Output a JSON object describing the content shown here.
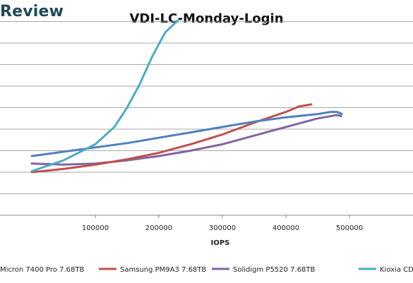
{
  "brand": "Review",
  "chart_data": {
    "type": "line",
    "title": "VDI-LC-Monday-Login",
    "xlabel": "IOPS",
    "ylabel": "",
    "xlim": [
      -50000,
      600000
    ],
    "ylim": [
      0,
      10
    ],
    "x_ticks": [
      100000,
      200000,
      300000,
      400000,
      500000
    ],
    "x_tick_labels": [
      "100000",
      "200000",
      "300000",
      "400000",
      "500000"
    ],
    "y_gridlines": [
      1,
      2,
      3,
      4,
      5,
      6,
      7,
      8,
      9
    ],
    "grid": true,
    "legend_position": "bottom",
    "series": [
      {
        "name": "Micron 7400 Pro 7.68TB",
        "color": "#4f81bd",
        "x": [
          0,
          50000,
          100000,
          150000,
          200000,
          250000,
          300000,
          350000,
          400000,
          450000,
          470000,
          480000,
          485000,
          488000
        ],
        "y": [
          2.75,
          2.95,
          3.15,
          3.35,
          3.6,
          3.85,
          4.1,
          4.35,
          4.55,
          4.7,
          4.8,
          4.8,
          4.75,
          4.7
        ]
      },
      {
        "name": "Samsung PM9A3 7.68TB",
        "color": "#c0504d",
        "x": [
          0,
          50000,
          100000,
          150000,
          200000,
          250000,
          300000,
          350000,
          400000,
          420000,
          440000
        ],
        "y": [
          2.0,
          2.15,
          2.35,
          2.6,
          2.9,
          3.3,
          3.75,
          4.3,
          4.8,
          5.05,
          5.15
        ]
      },
      {
        "name": "Solidigm P5520 7.68TB",
        "color": "#8064a2",
        "x": [
          0,
          50000,
          100000,
          150000,
          200000,
          250000,
          300000,
          350000,
          400000,
          450000,
          470000,
          478000,
          483000,
          487000
        ],
        "y": [
          2.4,
          2.35,
          2.4,
          2.55,
          2.75,
          3.0,
          3.3,
          3.7,
          4.1,
          4.5,
          4.6,
          4.65,
          4.65,
          4.6
        ]
      },
      {
        "name": "Kioxia CD",
        "color": "#4bacc6",
        "x": [
          0,
          50000,
          100000,
          130000,
          150000,
          170000,
          190000,
          210000,
          230000
        ],
        "y": [
          2.05,
          2.55,
          3.3,
          4.1,
          5.0,
          6.1,
          7.4,
          8.5,
          9.05
        ]
      }
    ]
  }
}
